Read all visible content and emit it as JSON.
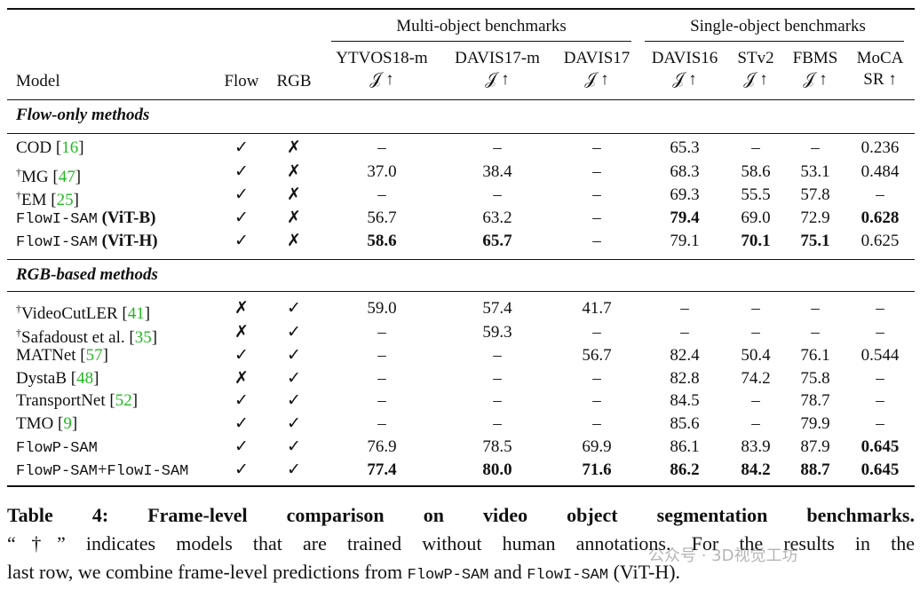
{
  "table": {
    "groups": [
      {
        "label": "Multi-object benchmarks"
      },
      {
        "label": "Single-object benchmarks"
      }
    ],
    "columns": [
      {
        "label": [
          "Model"
        ]
      },
      {
        "label": [
          "Flow"
        ]
      },
      {
        "label": [
          "RGB"
        ]
      },
      {
        "label": [
          "YTVOS18-m",
          "𝒥 ↑"
        ]
      },
      {
        "label": [
          "DAVIS17-m",
          "𝒥 ↑"
        ]
      },
      {
        "label": [
          "DAVIS17",
          "𝒥 ↑"
        ]
      },
      {
        "label": [
          "DAVIS16",
          "𝒥 ↑"
        ]
      },
      {
        "label": [
          "STv2",
          "𝒥 ↑"
        ]
      },
      {
        "label": [
          "FBMS",
          "𝒥 ↑"
        ]
      },
      {
        "label": [
          "MoCA",
          "SR ↑"
        ]
      }
    ],
    "sections": [
      {
        "title": "Flow-only methods",
        "rows": [
          {
            "model": [
              {
                "text": "COD ["
              },
              {
                "text": "16",
                "style": "cite"
              },
              {
                "text": "]"
              }
            ],
            "cells": [
              "✓",
              "✗",
              "–",
              "–",
              "–",
              "65.3",
              "–",
              "–",
              "0.236"
            ],
            "bold": []
          },
          {
            "model": [
              {
                "text": "†",
                "style": "sup"
              },
              {
                "text": "MG ["
              },
              {
                "text": "47",
                "style": "cite"
              },
              {
                "text": "]"
              }
            ],
            "cells": [
              "✓",
              "✗",
              "37.0",
              "38.4",
              "–",
              "68.3",
              "58.6",
              "53.1",
              "0.484"
            ],
            "bold": []
          },
          {
            "model": [
              {
                "text": "†",
                "style": "sup"
              },
              {
                "text": "EM ["
              },
              {
                "text": "25",
                "style": "cite"
              },
              {
                "text": "]"
              }
            ],
            "cells": [
              "✓",
              "✗",
              "–",
              "–",
              "–",
              "69.3",
              "55.5",
              "57.8",
              "–"
            ],
            "bold": []
          },
          {
            "model": [
              {
                "text": "FlowI-SAM",
                "style": "mono"
              },
              {
                "text": " (ViT-B)",
                "style": "bold"
              }
            ],
            "cells": [
              "✓",
              "✗",
              "56.7",
              "63.2",
              "–",
              "79.4",
              "69.0",
              "72.9",
              "0.628"
            ],
            "bold": [
              5,
              8
            ]
          },
          {
            "model": [
              {
                "text": "FlowI-SAM",
                "style": "mono"
              },
              {
                "text": " (ViT-H)",
                "style": "bold"
              }
            ],
            "cells": [
              "✓",
              "✗",
              "58.6",
              "65.7",
              "–",
              "79.1",
              "70.1",
              "75.1",
              "0.625"
            ],
            "bold": [
              2,
              3,
              6,
              7
            ]
          }
        ]
      },
      {
        "title": "RGB-based methods",
        "rows": [
          {
            "model": [
              {
                "text": "†",
                "style": "sup"
              },
              {
                "text": "VideoCutLER ["
              },
              {
                "text": "41",
                "style": "cite"
              },
              {
                "text": "]"
              }
            ],
            "cells": [
              "✗",
              "✓",
              "59.0",
              "57.4",
              "41.7",
              "–",
              "–",
              "–",
              "–"
            ],
            "bold": []
          },
          {
            "model": [
              {
                "text": "†",
                "style": "sup"
              },
              {
                "text": "Safadoust et al. ["
              },
              {
                "text": "35",
                "style": "cite"
              },
              {
                "text": "]"
              }
            ],
            "cells": [
              "✗",
              "✓",
              "–",
              "59.3",
              "–",
              "–",
              "–",
              "–",
              "–"
            ],
            "bold": []
          },
          {
            "model": [
              {
                "text": "MATNet ["
              },
              {
                "text": "57",
                "style": "cite"
              },
              {
                "text": "]"
              }
            ],
            "cells": [
              "✓",
              "✓",
              "–",
              "–",
              "56.7",
              "82.4",
              "50.4",
              "76.1",
              "0.544"
            ],
            "bold": []
          },
          {
            "model": [
              {
                "text": "DystaB ["
              },
              {
                "text": "48",
                "style": "cite"
              },
              {
                "text": "]"
              }
            ],
            "cells": [
              "✗",
              "✓",
              "–",
              "–",
              "–",
              "82.8",
              "74.2",
              "75.8",
              "–"
            ],
            "bold": []
          },
          {
            "model": [
              {
                "text": "TransportNet ["
              },
              {
                "text": "52",
                "style": "cite"
              },
              {
                "text": "]"
              }
            ],
            "cells": [
              "✓",
              "✓",
              "–",
              "–",
              "–",
              "84.5",
              "–",
              "78.7",
              "–"
            ],
            "bold": []
          },
          {
            "model": [
              {
                "text": "TMO ["
              },
              {
                "text": "9",
                "style": "cite"
              },
              {
                "text": "]"
              }
            ],
            "cells": [
              "✓",
              "✓",
              "–",
              "–",
              "–",
              "85.6",
              "–",
              "79.9",
              "–"
            ],
            "bold": []
          },
          {
            "model": [
              {
                "text": "FlowP-SAM",
                "style": "mono"
              }
            ],
            "cells": [
              "✓",
              "✓",
              "76.9",
              "78.5",
              "69.9",
              "86.1",
              "83.9",
              "87.9",
              "0.645"
            ],
            "bold": [
              8
            ]
          },
          {
            "model": [
              {
                "text": "FlowP-SAM",
                "style": "mono"
              },
              {
                "text": "+"
              },
              {
                "text": "FlowI-SAM",
                "style": "mono"
              }
            ],
            "cells": [
              "✓",
              "✓",
              "77.4",
              "80.0",
              "71.6",
              "86.2",
              "84.2",
              "88.7",
              "0.645"
            ],
            "bold": [
              2,
              3,
              4,
              5,
              6,
              7,
              8
            ]
          }
        ]
      }
    ]
  },
  "caption": {
    "lines": [
      [
        {
          "text": "Table 4: Frame-level comparison on video object segmentation benchmarks.",
          "style": "bold"
        }
      ],
      [
        {
          "text": "“†” indicates models that are trained without human annotations. For the results in the"
        }
      ],
      [
        {
          "text": "last row, we combine frame-level predictions from "
        },
        {
          "text": "FlowP-SAM",
          "style": "mono"
        },
        {
          "text": " and "
        },
        {
          "text": "FlowI-SAM",
          "style": "mono"
        },
        {
          "text": " (ViT-H)."
        }
      ]
    ]
  },
  "watermark": "公众号 · 3D视觉工坊"
}
